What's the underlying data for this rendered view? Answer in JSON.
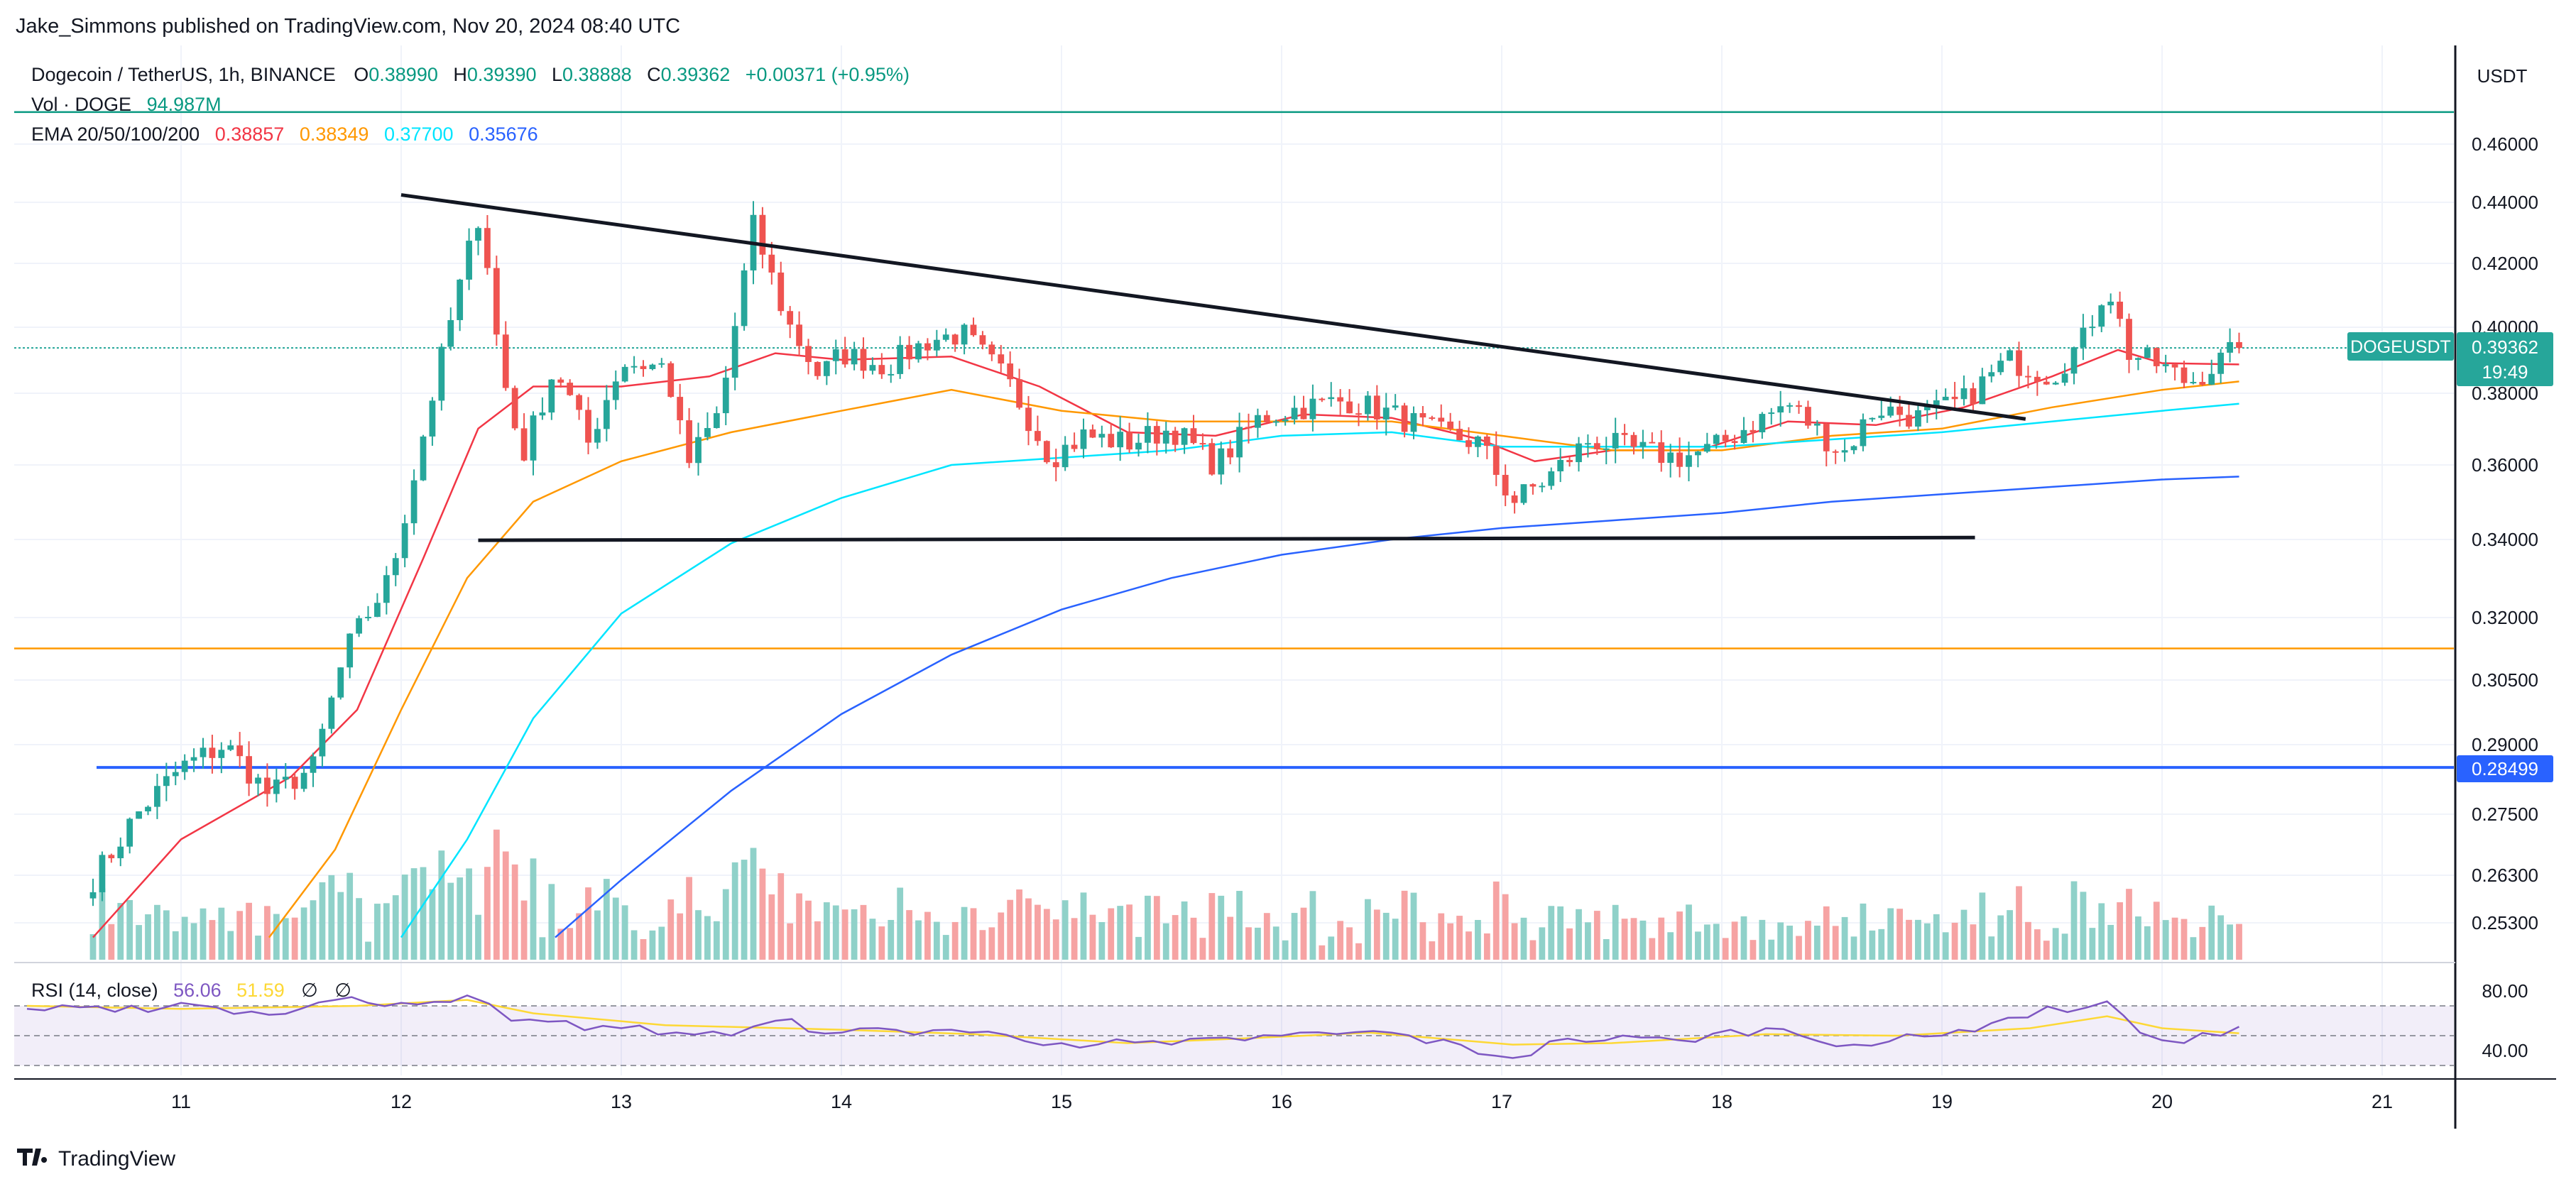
{
  "header": {
    "published_by": "Jake_Simmons published on TradingView.com, Nov 20, 2024 08:40 UTC"
  },
  "legend": {
    "symbol": "Dogecoin / TetherUS, 1h, BINANCE",
    "ohlc": [
      {
        "key": "O",
        "value": "0.38990"
      },
      {
        "key": "H",
        "value": "0.39390"
      },
      {
        "key": "L",
        "value": "0.38888"
      },
      {
        "key": "C",
        "value": "0.39362"
      }
    ],
    "change": "+0.00371 (+0.95%)",
    "volume_label": "Vol · DOGE",
    "volume_value": "94.987M",
    "ema_label": "EMA 20/50/100/200",
    "ema_values": [
      {
        "value": "0.38857",
        "color": "#f23645"
      },
      {
        "value": "0.38349",
        "color": "#ff9800"
      },
      {
        "value": "0.37700",
        "color": "#00e5ff"
      },
      {
        "value": "0.35676",
        "color": "#2962ff"
      }
    ],
    "rsi_label": "RSI (14, close)",
    "rsi_value": "56.06",
    "rsi_ma_value": "51.59",
    "rsi_icons": [
      "∅",
      "∅"
    ]
  },
  "axis": {
    "currency": "USDT",
    "price_ticks": [
      "0.46000",
      "0.44000",
      "0.42000",
      "0.40000",
      "0.38000",
      "0.36000",
      "0.34000",
      "0.32000",
      "0.30500",
      "0.29000",
      "0.27500",
      "0.26300",
      "0.25300"
    ],
    "rsi_ticks": [
      "80.00",
      "40.00"
    ],
    "time_ticks": [
      "11",
      "12",
      "13",
      "14",
      "15",
      "16",
      "17",
      "18",
      "19",
      "20",
      "21"
    ]
  },
  "price_tag": {
    "symbol": "DOGEUSDT",
    "price": "0.39362",
    "countdown": "19:49",
    "color": "#26a69a"
  },
  "level_tag": {
    "price": "0.28499",
    "color": "#2962ff"
  },
  "footer": {
    "brand": "TradingView"
  },
  "colors": {
    "up": "#26a69a",
    "down": "#ef5350",
    "up_vol": "#8fd1c9",
    "down_vol": "#f6a3a3",
    "orange_line": "#ff9800",
    "blue_line": "#2962ff",
    "teal_line": "#089981"
  },
  "chart_data": {
    "type": "candlestick",
    "title": "Dogecoin / TetherUS, 1h, BINANCE",
    "x_unit": "day of November 2024 (fractional)",
    "xlim": [
      10.3,
      21.3
    ],
    "ylim": [
      0.2485,
      0.4747
    ],
    "key_points": [
      {
        "x": 10.6,
        "y": 0.262
      },
      {
        "x": 10.8,
        "y": 0.275
      },
      {
        "x": 11.0,
        "y": 0.285
      },
      {
        "x": 11.2,
        "y": 0.29
      },
      {
        "x": 11.4,
        "y": 0.279
      },
      {
        "x": 11.6,
        "y": 0.285
      },
      {
        "x": 11.75,
        "y": 0.312
      },
      {
        "x": 11.95,
        "y": 0.33
      },
      {
        "x": 12.05,
        "y": 0.355
      },
      {
        "x": 12.2,
        "y": 0.395
      },
      {
        "x": 12.36,
        "y": 0.438
      },
      {
        "x": 12.45,
        "y": 0.388
      },
      {
        "x": 12.55,
        "y": 0.362
      },
      {
        "x": 12.7,
        "y": 0.388
      },
      {
        "x": 12.85,
        "y": 0.366
      },
      {
        "x": 13.0,
        "y": 0.389
      },
      {
        "x": 13.2,
        "y": 0.388
      },
      {
        "x": 13.3,
        "y": 0.36
      },
      {
        "x": 13.45,
        "y": 0.375
      },
      {
        "x": 13.6,
        "y": 0.432
      },
      {
        "x": 13.75,
        "y": 0.402
      },
      {
        "x": 13.9,
        "y": 0.385
      },
      {
        "x": 14.0,
        "y": 0.392
      },
      {
        "x": 14.2,
        "y": 0.388
      },
      {
        "x": 14.4,
        "y": 0.396
      },
      {
        "x": 14.55,
        "y": 0.398
      },
      {
        "x": 14.75,
        "y": 0.384
      },
      {
        "x": 14.95,
        "y": 0.362
      },
      {
        "x": 15.1,
        "y": 0.368
      },
      {
        "x": 15.3,
        "y": 0.366
      },
      {
        "x": 15.5,
        "y": 0.37
      },
      {
        "x": 15.7,
        "y": 0.36
      },
      {
        "x": 15.9,
        "y": 0.373
      },
      {
        "x": 16.1,
        "y": 0.376
      },
      {
        "x": 16.3,
        "y": 0.378
      },
      {
        "x": 16.5,
        "y": 0.374
      },
      {
        "x": 16.7,
        "y": 0.369
      },
      {
        "x": 16.9,
        "y": 0.366
      },
      {
        "x": 17.05,
        "y": 0.35
      },
      {
        "x": 17.2,
        "y": 0.356
      },
      {
        "x": 17.4,
        "y": 0.367
      },
      {
        "x": 17.6,
        "y": 0.364
      },
      {
        "x": 17.8,
        "y": 0.362
      },
      {
        "x": 17.95,
        "y": 0.364
      },
      {
        "x": 18.1,
        "y": 0.37
      },
      {
        "x": 18.3,
        "y": 0.377
      },
      {
        "x": 18.55,
        "y": 0.363
      },
      {
        "x": 18.7,
        "y": 0.376
      },
      {
        "x": 18.9,
        "y": 0.373
      },
      {
        "x": 19.1,
        "y": 0.378
      },
      {
        "x": 19.3,
        "y": 0.39
      },
      {
        "x": 19.5,
        "y": 0.385
      },
      {
        "x": 19.65,
        "y": 0.397
      },
      {
        "x": 19.75,
        "y": 0.414
      },
      {
        "x": 19.85,
        "y": 0.392
      },
      {
        "x": 20.0,
        "y": 0.388
      },
      {
        "x": 20.12,
        "y": 0.383
      },
      {
        "x": 20.25,
        "y": 0.389
      },
      {
        "x": 20.35,
        "y": 0.3936
      }
    ],
    "ema": [
      {
        "name": "EMA 20",
        "color": "#f23645",
        "points": [
          [
            10.6,
            0.25
          ],
          [
            11.0,
            0.27
          ],
          [
            11.5,
            0.283
          ],
          [
            11.8,
            0.298
          ],
          [
            12.1,
            0.335
          ],
          [
            12.35,
            0.37
          ],
          [
            12.6,
            0.382
          ],
          [
            13.0,
            0.382
          ],
          [
            13.4,
            0.385
          ],
          [
            13.7,
            0.392
          ],
          [
            14.0,
            0.39
          ],
          [
            14.5,
            0.391
          ],
          [
            14.9,
            0.382
          ],
          [
            15.3,
            0.369
          ],
          [
            15.7,
            0.368
          ],
          [
            16.1,
            0.374
          ],
          [
            16.5,
            0.373
          ],
          [
            16.9,
            0.367
          ],
          [
            17.15,
            0.361
          ],
          [
            17.5,
            0.364
          ],
          [
            17.9,
            0.364
          ],
          [
            18.3,
            0.372
          ],
          [
            18.7,
            0.371
          ],
          [
            19.1,
            0.376
          ],
          [
            19.5,
            0.385
          ],
          [
            19.8,
            0.393
          ],
          [
            20.0,
            0.389
          ],
          [
            20.35,
            0.3886
          ]
        ]
      },
      {
        "name": "EMA 50",
        "color": "#ff9800",
        "points": [
          [
            11.4,
            0.25
          ],
          [
            11.7,
            0.268
          ],
          [
            12.0,
            0.298
          ],
          [
            12.3,
            0.33
          ],
          [
            12.6,
            0.35
          ],
          [
            13.0,
            0.361
          ],
          [
            13.5,
            0.369
          ],
          [
            14.0,
            0.375
          ],
          [
            14.5,
            0.381
          ],
          [
            15.0,
            0.375
          ],
          [
            15.5,
            0.372
          ],
          [
            16.0,
            0.372
          ],
          [
            16.5,
            0.372
          ],
          [
            17.0,
            0.368
          ],
          [
            17.5,
            0.364
          ],
          [
            18.0,
            0.364
          ],
          [
            18.5,
            0.368
          ],
          [
            19.0,
            0.37
          ],
          [
            19.5,
            0.376
          ],
          [
            20.0,
            0.381
          ],
          [
            20.35,
            0.3835
          ]
        ]
      },
      {
        "name": "EMA 100",
        "color": "#00e5ff",
        "points": [
          [
            12.0,
            0.25
          ],
          [
            12.3,
            0.27
          ],
          [
            12.6,
            0.296
          ],
          [
            13.0,
            0.321
          ],
          [
            13.5,
            0.339
          ],
          [
            14.0,
            0.351
          ],
          [
            14.5,
            0.36
          ],
          [
            15.0,
            0.362
          ],
          [
            15.5,
            0.364
          ],
          [
            16.0,
            0.368
          ],
          [
            16.5,
            0.369
          ],
          [
            17.0,
            0.365
          ],
          [
            17.5,
            0.365
          ],
          [
            18.0,
            0.365
          ],
          [
            18.5,
            0.367
          ],
          [
            19.0,
            0.369
          ],
          [
            19.5,
            0.372
          ],
          [
            20.0,
            0.375
          ],
          [
            20.35,
            0.377
          ]
        ]
      },
      {
        "name": "EMA 200",
        "color": "#2962ff",
        "points": [
          [
            12.7,
            0.25
          ],
          [
            13.0,
            0.262
          ],
          [
            13.5,
            0.28
          ],
          [
            14.0,
            0.297
          ],
          [
            14.5,
            0.311
          ],
          [
            15.0,
            0.322
          ],
          [
            15.5,
            0.33
          ],
          [
            16.0,
            0.336
          ],
          [
            16.5,
            0.34
          ],
          [
            17.0,
            0.343
          ],
          [
            17.5,
            0.345
          ],
          [
            18.0,
            0.347
          ],
          [
            18.5,
            0.35
          ],
          [
            19.0,
            0.352
          ],
          [
            19.5,
            0.354
          ],
          [
            20.0,
            0.356
          ],
          [
            20.35,
            0.3568
          ]
        ]
      }
    ],
    "trendlines": [
      {
        "name": "descending resistance",
        "from": [
          12.0,
          0.4425
        ],
        "to": [
          19.38,
          0.3727
        ]
      },
      {
        "name": "horizontal support",
        "from": [
          12.35,
          0.3398
        ],
        "to": [
          19.15,
          0.3405
        ]
      }
    ],
    "horizontal_levels": [
      {
        "price": 0.4714,
        "color": "#089981",
        "name": "top line"
      },
      {
        "price": 0.3125,
        "color": "#ff9800",
        "name": "orange level"
      },
      {
        "price": 0.28499,
        "color": "#2962ff",
        "name": "blue level"
      },
      {
        "price": 0.39362,
        "color": "#26a69a",
        "name": "last price"
      }
    ],
    "rsi": {
      "ylim": [
        20,
        100
      ],
      "upper_band": 70,
      "mid": 50,
      "lower_band": 30,
      "rsi_points": [
        [
          10.3,
          68
        ],
        [
          10.7,
          66
        ],
        [
          11.0,
          72
        ],
        [
          11.4,
          64
        ],
        [
          11.7,
          74
        ],
        [
          12.0,
          72
        ],
        [
          12.3,
          77
        ],
        [
          12.5,
          60
        ],
        [
          13.0,
          55
        ],
        [
          13.5,
          50
        ],
        [
          13.7,
          60
        ],
        [
          14.0,
          52
        ],
        [
          14.5,
          54
        ],
        [
          15.0,
          45
        ],
        [
          15.5,
          44
        ],
        [
          16.0,
          50
        ],
        [
          16.5,
          52
        ],
        [
          17.05,
          35
        ],
        [
          17.3,
          48
        ],
        [
          17.8,
          47
        ],
        [
          18.2,
          55
        ],
        [
          18.6,
          44
        ],
        [
          19.0,
          50
        ],
        [
          19.3,
          62
        ],
        [
          19.75,
          73
        ],
        [
          19.9,
          52
        ],
        [
          20.1,
          45
        ],
        [
          20.35,
          56
        ]
      ],
      "ma_points": [
        [
          10.3,
          70
        ],
        [
          11.0,
          68
        ],
        [
          11.8,
          70
        ],
        [
          12.3,
          74
        ],
        [
          12.6,
          65
        ],
        [
          13.2,
          57
        ],
        [
          14.0,
          54
        ],
        [
          14.6,
          51
        ],
        [
          15.3,
          45
        ],
        [
          15.8,
          48
        ],
        [
          16.4,
          52
        ],
        [
          17.05,
          44
        ],
        [
          17.5,
          45
        ],
        [
          18.2,
          51
        ],
        [
          18.8,
          50
        ],
        [
          19.4,
          55
        ],
        [
          19.75,
          63
        ],
        [
          20.0,
          55
        ],
        [
          20.35,
          51.6
        ]
      ]
    }
  }
}
